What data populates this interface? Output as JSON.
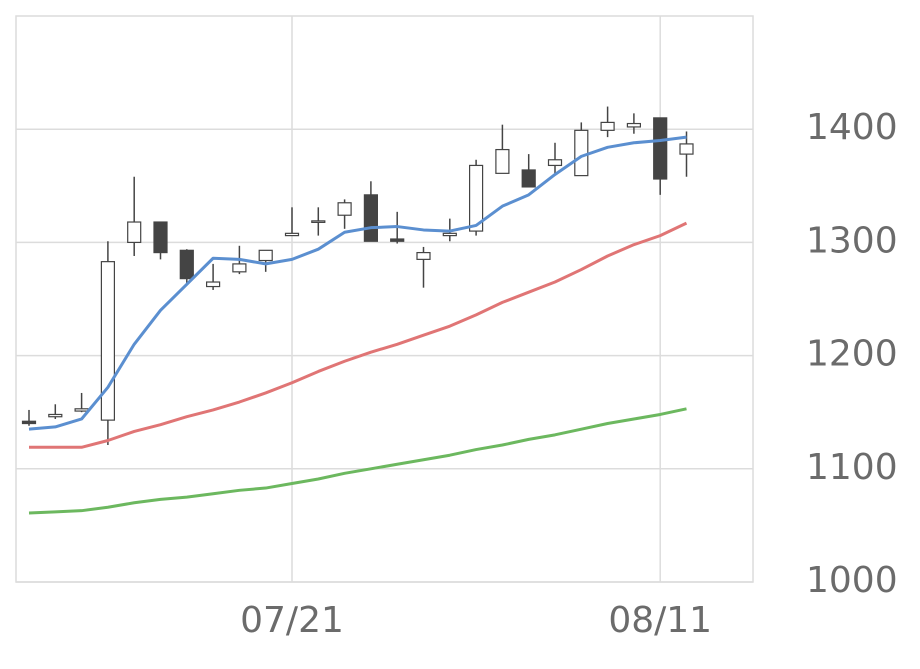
{
  "chart_data": {
    "type": "candlestick",
    "categories": [
      null,
      null,
      null,
      null,
      null,
      null,
      null,
      null,
      null,
      null,
      "07/21",
      null,
      null,
      null,
      null,
      null,
      null,
      null,
      null,
      null,
      null,
      null,
      null,
      null,
      "08/11",
      null
    ],
    "open": [
      1142,
      1146,
      1151,
      1143,
      1300,
      1318,
      1293,
      1261,
      1274,
      1284,
      1306,
      1318,
      1324,
      1342,
      1303,
      1285,
      1306,
      1310,
      1361,
      1364,
      1368,
      1359,
      1399,
      1402,
      1410,
      1378
    ],
    "high": [
      1152,
      1157,
      1167,
      1301,
      1358,
      1318,
      1294,
      1281,
      1297,
      1293,
      1331,
      1331,
      1338,
      1354,
      1327,
      1296,
      1321,
      1373,
      1404,
      1378,
      1388,
      1406,
      1420,
      1414,
      1410,
      1398
    ],
    "low": [
      1138,
      1144,
      1150,
      1121,
      1288,
      1285,
      1262,
      1258,
      1272,
      1274,
      1306,
      1306,
      1312,
      1301,
      1299,
      1260,
      1301,
      1306,
      1361,
      1349,
      1359,
      1359,
      1393,
      1396,
      1342,
      1358
    ],
    "close": [
      1140,
      1148,
      1153,
      1283,
      1318,
      1291,
      1268,
      1265,
      1281,
      1293,
      1308,
      1319,
      1335,
      1301,
      1301,
      1291,
      1308,
      1368,
      1382,
      1349,
      1373,
      1399,
      1406,
      1405,
      1356,
      1387
    ],
    "up_color": "#ffffff",
    "down_color": "#444444",
    "wick_color": "#444444",
    "lines": [
      {
        "color": "#5b8fd0",
        "values": [
          1135,
          1137,
          1144,
          1172,
          1210,
          1240,
          1263,
          1286,
          1285,
          1281,
          1285,
          1294,
          1309,
          1313,
          1314,
          1311,
          1310,
          1315,
          1332,
          1342,
          1360,
          1376,
          1384,
          1388,
          1390,
          1393
        ]
      },
      {
        "color": "#e07575",
        "values": [
          1119,
          1119,
          1119,
          1125,
          1133,
          1139,
          1146,
          1152,
          1159,
          1167,
          1176,
          1186,
          1195,
          1203,
          1210,
          1218,
          1226,
          1236,
          1247,
          1256,
          1265,
          1276,
          1288,
          1298,
          1306,
          1317
        ]
      },
      {
        "color": "#6cb85f",
        "values": [
          1061,
          1062,
          1063,
          1066,
          1070,
          1073,
          1075,
          1078,
          1081,
          1083,
          1087,
          1091,
          1096,
          1100,
          1104,
          1108,
          1112,
          1117,
          1121,
          1126,
          1130,
          1135,
          1140,
          1144,
          1148,
          1153
        ]
      }
    ],
    "ylim": [
      1000,
      1500
    ],
    "yticks": [
      1000,
      1100,
      1200,
      1300,
      1400
    ],
    "grid": true
  }
}
